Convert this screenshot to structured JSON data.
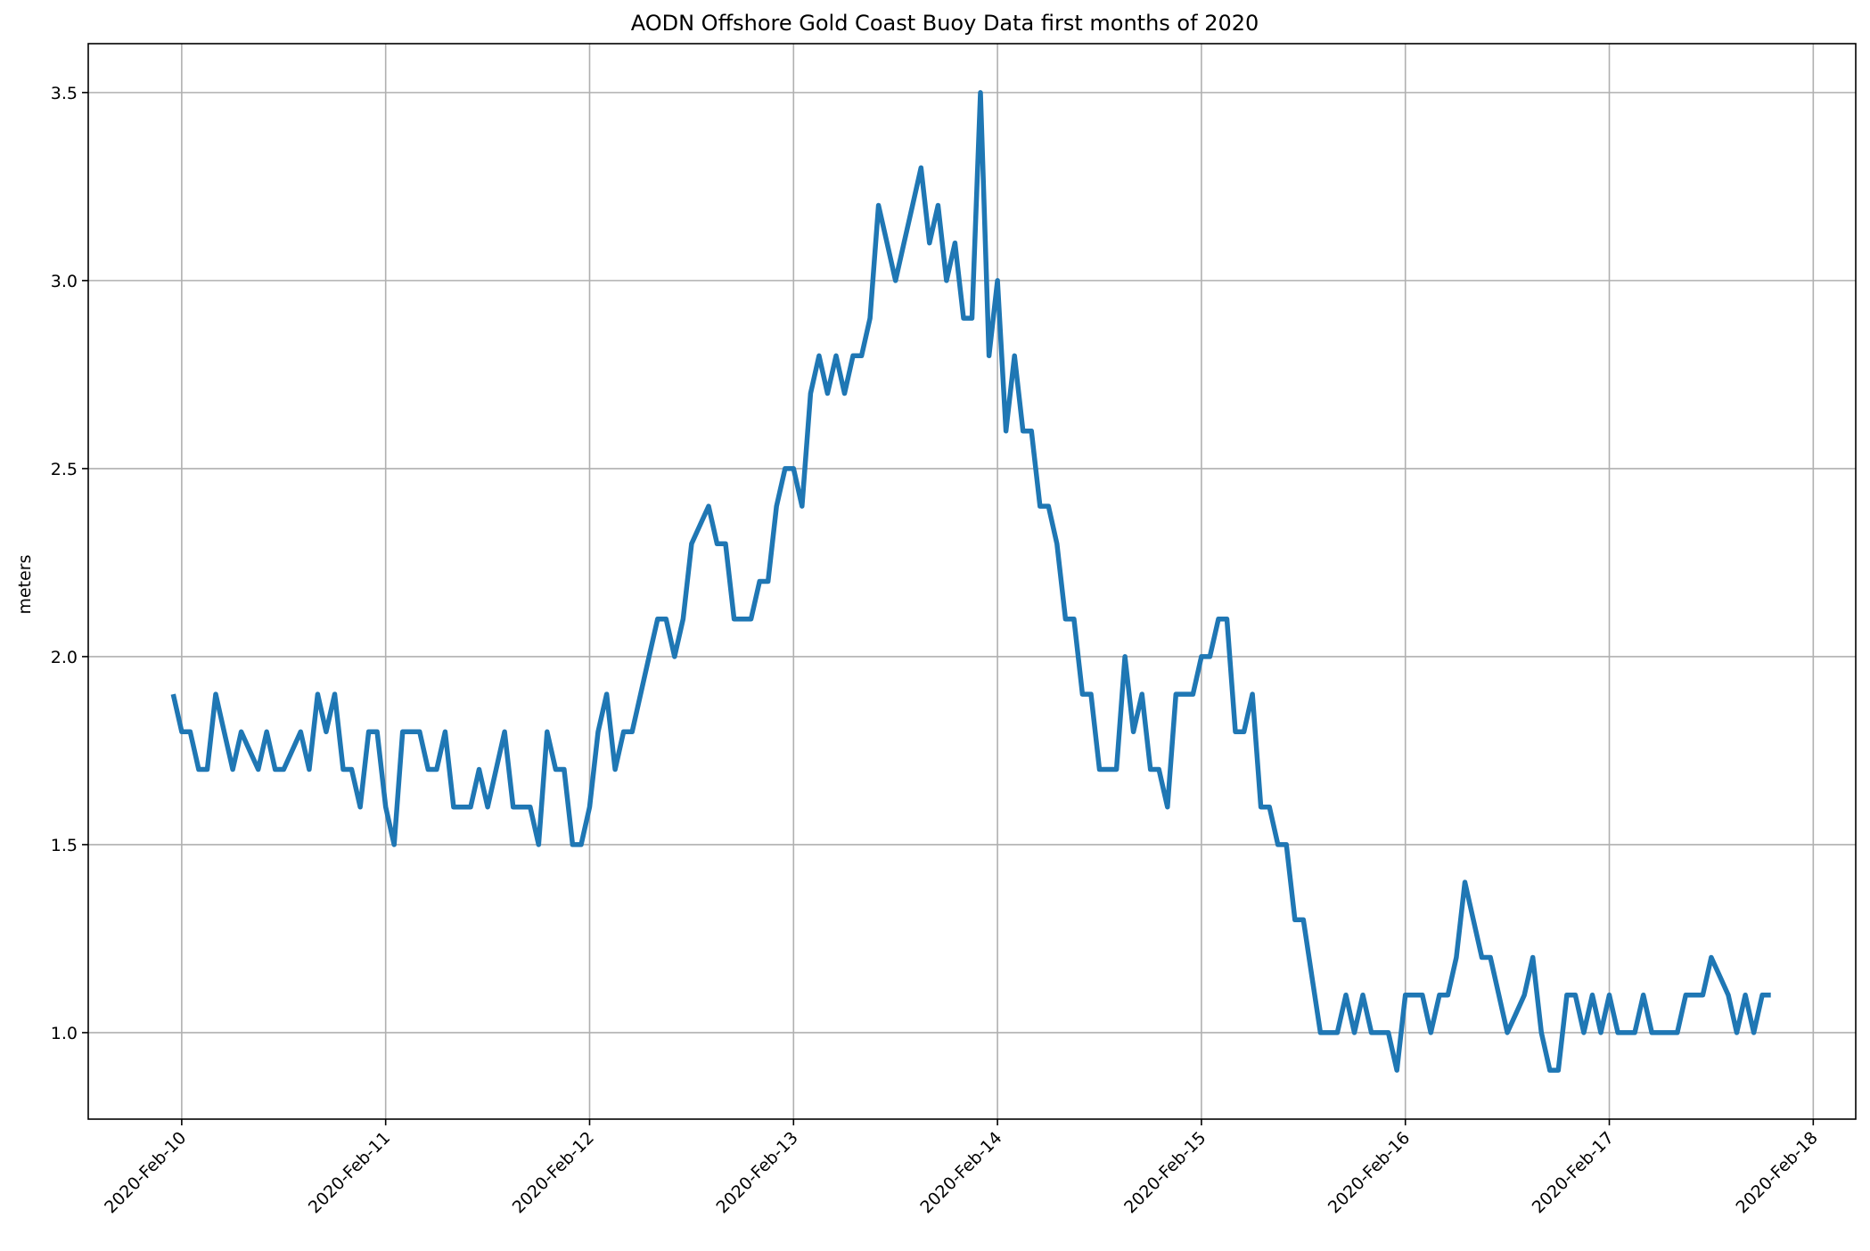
{
  "chart_data": {
    "type": "line",
    "title": "AODN Offshore Gold Coast Buoy Data first months of 2020",
    "xlabel": "",
    "ylabel": "meters",
    "grid": true,
    "color": "#1f77b4",
    "x_ticks": [
      "2020-Feb-10",
      "2020-Feb-11",
      "2020-Feb-12",
      "2020-Feb-13",
      "2020-Feb-14",
      "2020-Feb-15",
      "2020-Feb-16",
      "2020-Feb-17",
      "2020-Feb-18"
    ],
    "y_ticks": [
      "1.0",
      "1.5",
      "2.0",
      "2.5",
      "3.0",
      "3.5"
    ],
    "ylim": [
      0.77,
      3.63
    ],
    "xlim": [
      "2020-Feb-09 13:00",
      "2020-Feb-18 05:00"
    ],
    "series": [
      {
        "x": [
          "2020-Feb-09 23:00",
          "2020-Feb-10 00:00",
          "2020-Feb-10 01:00",
          "2020-Feb-10 02:00",
          "2020-Feb-10 03:00",
          "2020-Feb-10 04:00",
          "2020-Feb-10 05:00",
          "2020-Feb-10 06:00",
          "2020-Feb-10 07:00",
          "2020-Feb-10 08:00",
          "2020-Feb-10 09:00",
          "2020-Feb-10 10:00",
          "2020-Feb-10 11:00",
          "2020-Feb-10 12:00",
          "2020-Feb-10 13:00",
          "2020-Feb-10 14:00",
          "2020-Feb-10 15:00",
          "2020-Feb-10 16:00",
          "2020-Feb-10 17:00",
          "2020-Feb-10 18:00",
          "2020-Feb-10 19:00",
          "2020-Feb-10 20:00",
          "2020-Feb-10 21:00",
          "2020-Feb-10 22:00",
          "2020-Feb-10 23:00",
          "2020-Feb-11 00:00",
          "2020-Feb-11 01:00",
          "2020-Feb-11 02:00",
          "2020-Feb-11 03:00",
          "2020-Feb-11 04:00",
          "2020-Feb-11 05:00",
          "2020-Feb-11 06:00",
          "2020-Feb-11 07:00",
          "2020-Feb-11 08:00",
          "2020-Feb-11 09:00",
          "2020-Feb-11 10:00",
          "2020-Feb-11 11:00",
          "2020-Feb-11 12:00",
          "2020-Feb-11 13:00",
          "2020-Feb-11 14:00",
          "2020-Feb-11 15:00",
          "2020-Feb-11 16:00",
          "2020-Feb-11 17:00",
          "2020-Feb-11 18:00",
          "2020-Feb-11 19:00",
          "2020-Feb-11 20:00",
          "2020-Feb-11 21:00",
          "2020-Feb-11 22:00",
          "2020-Feb-11 23:00",
          "2020-Feb-12 00:00",
          "2020-Feb-12 01:00",
          "2020-Feb-12 02:00",
          "2020-Feb-12 03:00",
          "2020-Feb-12 04:00",
          "2020-Feb-12 05:00",
          "2020-Feb-12 06:00",
          "2020-Feb-12 07:00",
          "2020-Feb-12 08:00",
          "2020-Feb-12 09:00",
          "2020-Feb-12 10:00",
          "2020-Feb-12 11:00",
          "2020-Feb-12 12:00",
          "2020-Feb-12 13:00",
          "2020-Feb-12 14:00",
          "2020-Feb-12 15:00",
          "2020-Feb-12 16:00",
          "2020-Feb-12 17:00",
          "2020-Feb-12 18:00",
          "2020-Feb-12 19:00",
          "2020-Feb-12 20:00",
          "2020-Feb-12 21:00",
          "2020-Feb-12 22:00",
          "2020-Feb-12 23:00",
          "2020-Feb-13 00:00",
          "2020-Feb-13 01:00",
          "2020-Feb-13 02:00",
          "2020-Feb-13 03:00",
          "2020-Feb-13 04:00",
          "2020-Feb-13 05:00",
          "2020-Feb-13 06:00",
          "2020-Feb-13 07:00",
          "2020-Feb-13 08:00",
          "2020-Feb-13 09:00",
          "2020-Feb-13 10:00",
          "2020-Feb-13 11:00",
          "2020-Feb-13 12:00",
          "2020-Feb-13 13:00",
          "2020-Feb-13 14:00",
          "2020-Feb-13 15:00",
          "2020-Feb-13 16:00",
          "2020-Feb-13 17:00",
          "2020-Feb-13 18:00",
          "2020-Feb-13 19:00",
          "2020-Feb-13 20:00",
          "2020-Feb-13 21:00",
          "2020-Feb-13 22:00",
          "2020-Feb-13 23:00",
          "2020-Feb-14 00:00",
          "2020-Feb-14 01:00",
          "2020-Feb-14 02:00",
          "2020-Feb-14 03:00",
          "2020-Feb-14 04:00",
          "2020-Feb-14 05:00",
          "2020-Feb-14 06:00",
          "2020-Feb-14 07:00",
          "2020-Feb-14 08:00",
          "2020-Feb-14 09:00",
          "2020-Feb-14 10:00",
          "2020-Feb-14 11:00",
          "2020-Feb-14 12:00",
          "2020-Feb-14 13:00",
          "2020-Feb-14 14:00",
          "2020-Feb-14 15:00",
          "2020-Feb-14 16:00",
          "2020-Feb-14 17:00",
          "2020-Feb-14 18:00",
          "2020-Feb-14 19:00",
          "2020-Feb-14 20:00",
          "2020-Feb-14 21:00",
          "2020-Feb-14 22:00",
          "2020-Feb-14 23:00",
          "2020-Feb-15 00:00",
          "2020-Feb-15 01:00",
          "2020-Feb-15 02:00",
          "2020-Feb-15 03:00",
          "2020-Feb-15 04:00",
          "2020-Feb-15 05:00",
          "2020-Feb-15 06:00",
          "2020-Feb-15 07:00",
          "2020-Feb-15 08:00",
          "2020-Feb-15 09:00",
          "2020-Feb-15 10:00",
          "2020-Feb-15 11:00",
          "2020-Feb-15 12:00",
          "2020-Feb-15 13:00",
          "2020-Feb-15 14:00",
          "2020-Feb-15 15:00",
          "2020-Feb-15 16:00",
          "2020-Feb-15 17:00",
          "2020-Feb-15 18:00",
          "2020-Feb-15 19:00",
          "2020-Feb-15 20:00",
          "2020-Feb-15 21:00",
          "2020-Feb-15 22:00",
          "2020-Feb-15 23:00",
          "2020-Feb-16 00:00",
          "2020-Feb-16 01:00",
          "2020-Feb-16 02:00",
          "2020-Feb-16 03:00",
          "2020-Feb-16 04:00",
          "2020-Feb-16 05:00",
          "2020-Feb-16 06:00",
          "2020-Feb-16 07:00",
          "2020-Feb-16 08:00",
          "2020-Feb-16 09:00",
          "2020-Feb-16 10:00",
          "2020-Feb-16 11:00",
          "2020-Feb-16 12:00",
          "2020-Feb-16 13:00",
          "2020-Feb-16 14:00",
          "2020-Feb-16 15:00",
          "2020-Feb-16 16:00",
          "2020-Feb-16 17:00",
          "2020-Feb-16 18:00",
          "2020-Feb-16 19:00",
          "2020-Feb-16 20:00",
          "2020-Feb-16 21:00",
          "2020-Feb-16 22:00",
          "2020-Feb-16 23:00",
          "2020-Feb-17 00:00",
          "2020-Feb-17 01:00",
          "2020-Feb-17 02:00",
          "2020-Feb-17 03:00",
          "2020-Feb-17 04:00",
          "2020-Feb-17 05:00",
          "2020-Feb-17 06:00",
          "2020-Feb-17 07:00",
          "2020-Feb-17 08:00",
          "2020-Feb-17 09:00",
          "2020-Feb-17 10:00",
          "2020-Feb-17 11:00",
          "2020-Feb-17 12:00",
          "2020-Feb-17 13:00",
          "2020-Feb-17 14:00",
          "2020-Feb-17 15:00",
          "2020-Feb-17 16:00",
          "2020-Feb-17 17:00",
          "2020-Feb-17 18:00",
          "2020-Feb-17 19:00"
        ],
        "y": [
          1.9,
          1.8,
          1.8,
          1.7,
          1.7,
          1.9,
          1.8,
          1.7,
          1.8,
          1.75,
          1.7,
          1.8,
          1.7,
          1.7,
          1.75,
          1.8,
          1.7,
          1.9,
          1.8,
          1.9,
          1.7,
          1.7,
          1.6,
          1.8,
          1.8,
          1.6,
          1.5,
          1.8,
          1.8,
          1.8,
          1.7,
          1.7,
          1.8,
          1.6,
          1.6,
          1.6,
          1.7,
          1.6,
          1.7,
          1.8,
          1.6,
          1.6,
          1.6,
          1.5,
          1.8,
          1.7,
          1.7,
          1.5,
          1.5,
          1.6,
          1.8,
          1.9,
          1.7,
          1.8,
          1.8,
          1.9,
          2.0,
          2.1,
          2.1,
          2.0,
          2.1,
          2.3,
          2.35,
          2.4,
          2.3,
          2.3,
          2.1,
          2.1,
          2.1,
          2.2,
          2.2,
          2.4,
          2.5,
          2.5,
          2.4,
          2.7,
          2.8,
          2.7,
          2.8,
          2.7,
          2.8,
          2.8,
          2.9,
          3.2,
          3.1,
          3.0,
          3.1,
          3.2,
          3.3,
          3.1,
          3.2,
          3.0,
          3.1,
          2.9,
          2.9,
          3.5,
          2.8,
          3.0,
          2.6,
          2.8,
          2.6,
          2.6,
          2.4,
          2.4,
          2.3,
          2.1,
          2.1,
          1.9,
          1.9,
          1.7,
          1.7,
          1.7,
          2.0,
          1.8,
          1.9,
          1.7,
          1.7,
          1.6,
          1.9,
          1.9,
          1.9,
          2.0,
          2.0,
          2.1,
          2.1,
          1.8,
          1.8,
          1.9,
          1.6,
          1.6,
          1.5,
          1.5,
          1.3,
          1.3,
          1.15,
          1.0,
          1.0,
          1.0,
          1.1,
          1.0,
          1.1,
          1.0,
          1.0,
          1.0,
          0.9,
          1.1,
          1.1,
          1.1,
          1.0,
          1.1,
          1.1,
          1.2,
          1.4,
          1.3,
          1.2,
          1.2,
          1.1,
          1.0,
          1.05,
          1.1,
          1.2,
          1.0,
          0.9,
          0.9,
          1.1,
          1.1,
          1.0,
          1.1,
          1.0,
          1.1,
          1.0,
          1.0,
          1.0,
          1.1,
          1.0,
          1.0,
          1.0,
          1.0,
          1.1,
          1.1,
          1.1,
          1.2,
          1.15,
          1.1,
          1.0,
          1.1,
          1.0,
          1.1,
          1.1
        ]
      }
    ]
  }
}
